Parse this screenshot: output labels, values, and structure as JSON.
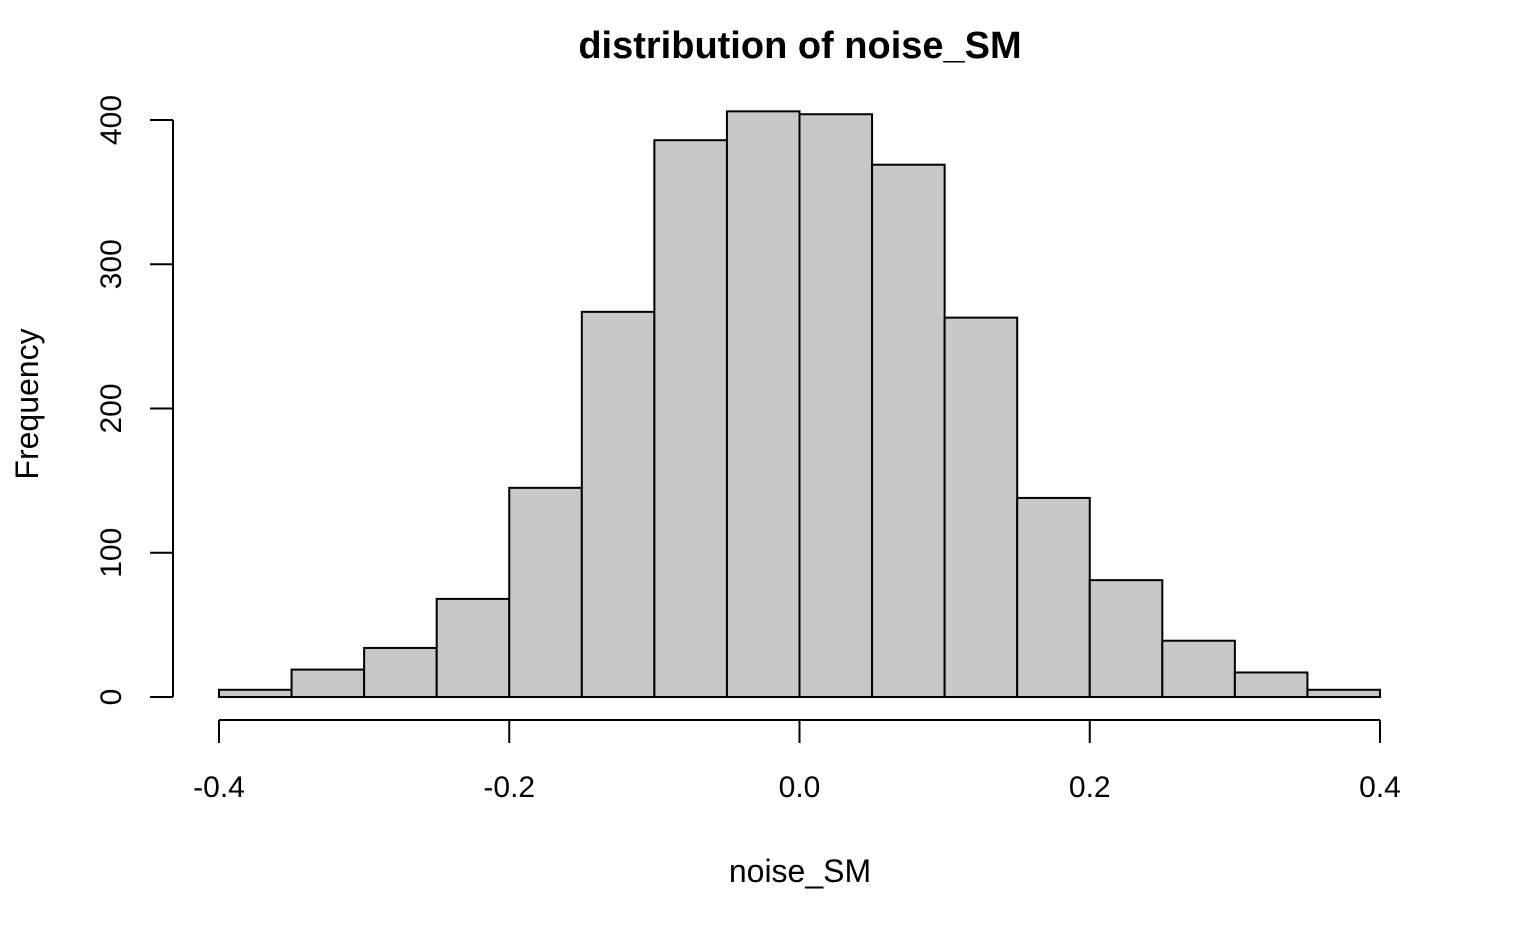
{
  "chart_data": {
    "type": "bar",
    "title": "distribution of noise_SM",
    "xlabel": "noise_SM",
    "ylabel": "Frequency",
    "bin_edges": [
      -0.4,
      -0.35,
      -0.3,
      -0.25,
      -0.2,
      -0.15,
      -0.1,
      -0.05,
      0.0,
      0.05,
      0.1,
      0.15,
      0.2,
      0.25,
      0.3,
      0.35,
      0.4
    ],
    "values": [
      5,
      19,
      34,
      68,
      145,
      267,
      386,
      406,
      404,
      369,
      263,
      138,
      81,
      39,
      17,
      5
    ],
    "xlim": [
      -0.4,
      0.4
    ],
    "ylim": [
      0,
      400
    ],
    "x_ticks": [
      "-0.4",
      "-0.2",
      "0.0",
      "0.2",
      "0.4"
    ],
    "y_ticks": [
      "0",
      "100",
      "200",
      "300",
      "400"
    ],
    "bar_color": "#c8c8c8",
    "grid": false
  }
}
